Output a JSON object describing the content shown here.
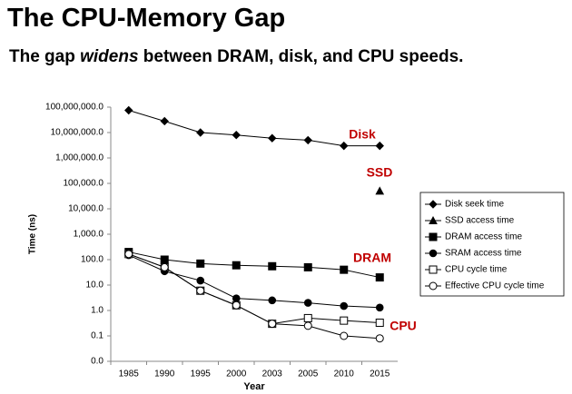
{
  "chart_data": {
    "type": "line",
    "title": "The CPU-Memory Gap",
    "subtitle": {
      "before": "The gap ",
      "emphasis": "widens",
      "after": " between DRAM, disk, and CPU speeds."
    },
    "x_label": "Year",
    "y_label": "Time (ns)",
    "categories": [
      "1985",
      "1990",
      "1995",
      "2000",
      "2003",
      "2005",
      "2010",
      "2015"
    ],
    "log_y": true,
    "ylim": [
      0.01,
      100000000
    ],
    "yticks": [
      {
        "value": 0.01,
        "label": "0.0"
      },
      0.1,
      {
        "value": 1,
        "label": "1.0"
      },
      {
        "value": 10,
        "label": "10.0"
      },
      {
        "value": 100,
        "label": "100.0"
      },
      {
        "value": 1000,
        "label": "1,000.0"
      },
      {
        "value": 10000,
        "label": "10,000.0"
      },
      {
        "value": 100000,
        "label": "100,000.0"
      },
      {
        "value": 1000000,
        "label": "1,000,000.0"
      },
      {
        "value": 10000000,
        "label": "10,000,000.0"
      },
      {
        "value": 100000000,
        "label": "100,000,000.0"
      }
    ],
    "legend": "right",
    "series": [
      {
        "name": "Disk seek time",
        "color": "#000000",
        "marker": "diamond",
        "values": [
          75000000,
          28000000,
          10000000,
          8000000,
          6000000,
          5000000,
          3000000,
          3000000
        ]
      },
      {
        "name": "SSD access time",
        "color": "#000000",
        "marker": "triangle",
        "values": [
          null,
          null,
          null,
          null,
          null,
          null,
          null,
          50000
        ]
      },
      {
        "name": "DRAM access time",
        "color": "#000000",
        "marker": "square",
        "values": [
          200,
          100,
          70,
          60,
          55,
          50,
          40,
          20
        ]
      },
      {
        "name": "SRAM access time",
        "color": "#000000",
        "marker": "circle",
        "values": [
          150,
          35,
          15,
          3,
          2.5,
          2,
          1.5,
          1.3
        ]
      },
      {
        "name": "CPU cycle time",
        "color": "#000000",
        "marker": "open-square",
        "values": [
          166,
          50,
          6,
          1.6,
          0.3,
          0.5,
          0.4,
          0.33
        ]
      },
      {
        "name": "Effective CPU cycle time",
        "color": "#000000",
        "marker": "open-circle",
        "values": [
          166,
          50,
          6,
          1.6,
          0.3,
          0.25,
          0.1,
          0.08
        ]
      }
    ],
    "annotations": [
      "Disk",
      "SSD",
      "DRAM",
      "CPU"
    ],
    "annotation_color": "#c00000"
  }
}
